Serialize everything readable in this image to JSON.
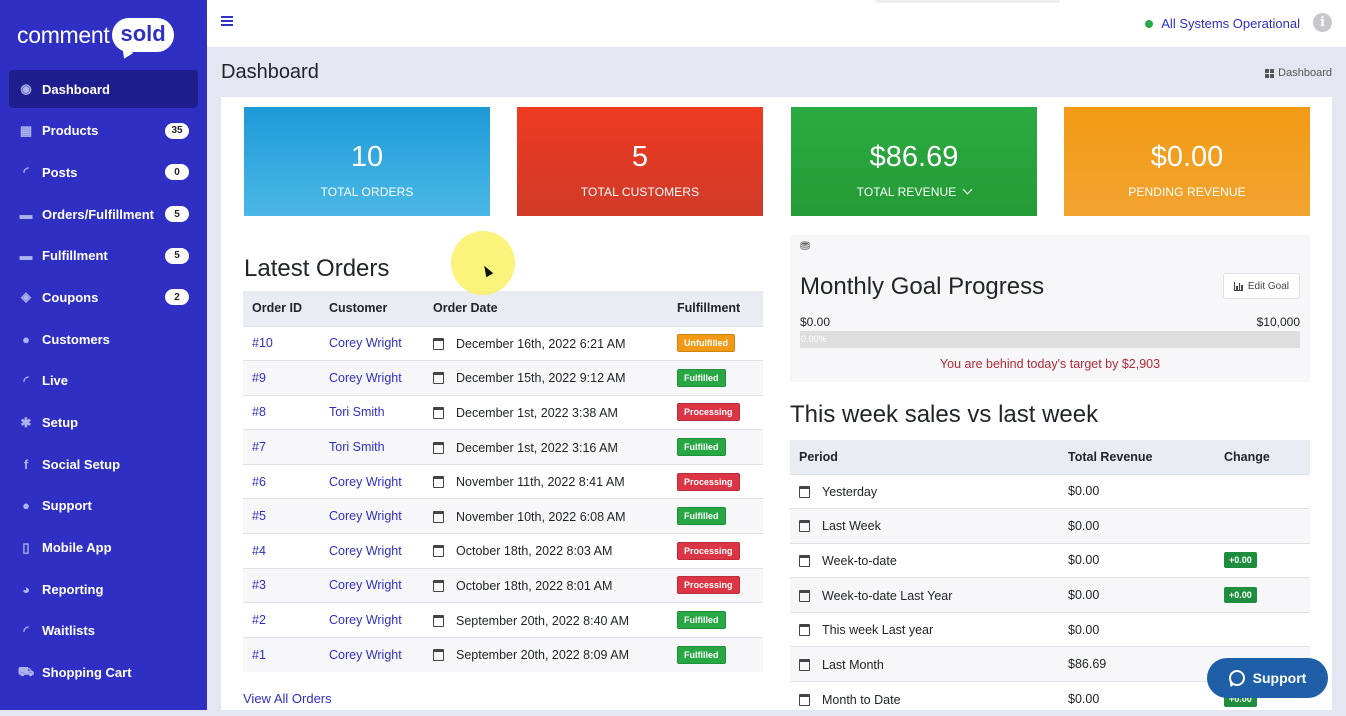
{
  "brand": {
    "word1": "comment",
    "word2": "sold"
  },
  "sidebar": {
    "items": [
      {
        "label": "Dashboard",
        "icon": "dashboard-icon",
        "glyph": "◉",
        "badge": ""
      },
      {
        "label": "Products",
        "icon": "grid-icon",
        "glyph": "▦",
        "badge": "35"
      },
      {
        "label": "Posts",
        "icon": "rss-icon",
        "glyph": "◜",
        "badge": "0"
      },
      {
        "label": "Orders/Fulfillment",
        "icon": "truck-icon",
        "glyph": "▬",
        "badge": "5"
      },
      {
        "label": "Fulfillment",
        "icon": "truck-icon",
        "glyph": "▬",
        "badge": "5"
      },
      {
        "label": "Coupons",
        "icon": "tag-icon",
        "glyph": "◈",
        "badge": "2"
      },
      {
        "label": "Customers",
        "icon": "user-icon",
        "glyph": "●",
        "badge": ""
      },
      {
        "label": "Live",
        "icon": "rss-icon",
        "glyph": "◜",
        "badge": ""
      },
      {
        "label": "Setup",
        "icon": "gears-icon",
        "glyph": "✱",
        "badge": ""
      },
      {
        "label": "Social Setup",
        "icon": "facebook-icon",
        "glyph": "f",
        "badge": ""
      },
      {
        "label": "Support",
        "icon": "comments-icon",
        "glyph": "●",
        "badge": ""
      },
      {
        "label": "Mobile App",
        "icon": "mobile-icon",
        "glyph": "▯",
        "badge": ""
      },
      {
        "label": "Reporting",
        "icon": "pie-chart-icon",
        "glyph": "◕",
        "badge": ""
      },
      {
        "label": "Waitlists",
        "icon": "rss-icon",
        "glyph": "◜",
        "badge": ""
      },
      {
        "label": "Shopping Cart",
        "icon": "cart-icon",
        "glyph": "⛟",
        "badge": ""
      }
    ]
  },
  "topbar": {
    "status": "All Systems Operational",
    "info": "i"
  },
  "page": {
    "title": "Dashboard",
    "breadcrumb": "Dashboard"
  },
  "cards": [
    {
      "value": "10",
      "label": "TOTAL ORDERS"
    },
    {
      "value": "5",
      "label": "TOTAL CUSTOMERS"
    },
    {
      "value": "$86.69",
      "label": "TOTAL REVENUE"
    },
    {
      "value": "$0.00",
      "label": "PENDING REVENUE"
    }
  ],
  "orders": {
    "title": "Latest Orders",
    "headers": [
      "Order ID",
      "Customer",
      "Order Date",
      "Fulfillment"
    ],
    "rows": [
      {
        "id": "#10",
        "customer": "Corey Wright",
        "date": "December 16th, 2022 6:21 AM",
        "status": "Unfulfilled"
      },
      {
        "id": "#9",
        "customer": "Corey Wright",
        "date": "December 15th, 2022 9:12 AM",
        "status": "Fulfilled"
      },
      {
        "id": "#8",
        "customer": "Tori Smith",
        "date": "December 1st, 2022 3:38 AM",
        "status": "Processing"
      },
      {
        "id": "#7",
        "customer": "Tori Smith",
        "date": "December 1st, 2022 3:16 AM",
        "status": "Fulfilled"
      },
      {
        "id": "#6",
        "customer": "Corey Wright",
        "date": "November 11th, 2022 8:41 AM",
        "status": "Processing"
      },
      {
        "id": "#5",
        "customer": "Corey Wright",
        "date": "November 10th, 2022 6:08 AM",
        "status": "Fulfilled"
      },
      {
        "id": "#4",
        "customer": "Corey Wright",
        "date": "October 18th, 2022 8:03 AM",
        "status": "Processing"
      },
      {
        "id": "#3",
        "customer": "Corey Wright",
        "date": "October 18th, 2022 8:01 AM",
        "status": "Processing"
      },
      {
        "id": "#2",
        "customer": "Corey Wright",
        "date": "September 20th, 2022 8:40 AM",
        "status": "Fulfilled"
      },
      {
        "id": "#1",
        "customer": "Corey Wright",
        "date": "September 20th, 2022 8:09 AM",
        "status": "Fulfilled"
      }
    ],
    "view_all": "View All Orders"
  },
  "goal": {
    "title": "Monthly Goal Progress",
    "edit_label": "Edit Goal",
    "min": "$0.00",
    "max": "$10,000",
    "percent_label": "0.00%",
    "progress": 0,
    "message": "You are behind today's target by $2,903"
  },
  "week": {
    "title": "This week sales vs last week",
    "headers": [
      "Period",
      "Total Revenue",
      "Change"
    ],
    "rows": [
      {
        "period": "Yesterday",
        "revenue": "$0.00",
        "change": ""
      },
      {
        "period": "Last Week",
        "revenue": "$0.00",
        "change": ""
      },
      {
        "period": "Week-to-date",
        "revenue": "$0.00",
        "change": "+0.00"
      },
      {
        "period": "Week-to-date Last Year",
        "revenue": "$0.00",
        "change": "+0.00"
      },
      {
        "period": "This week Last year",
        "revenue": "$0.00",
        "change": ""
      },
      {
        "period": "Last Month",
        "revenue": "$86.69",
        "change": ""
      },
      {
        "period": "Month to Date",
        "revenue": "$0.00",
        "change": "+0.00"
      }
    ]
  },
  "support_button": "Support",
  "colors": {
    "sidebar": "#2f2fc4",
    "active": "#1e1e8e",
    "blue": "#1e9ad8",
    "red": "#ee3a21",
    "green": "#2cab42",
    "orange": "#f29a15"
  }
}
